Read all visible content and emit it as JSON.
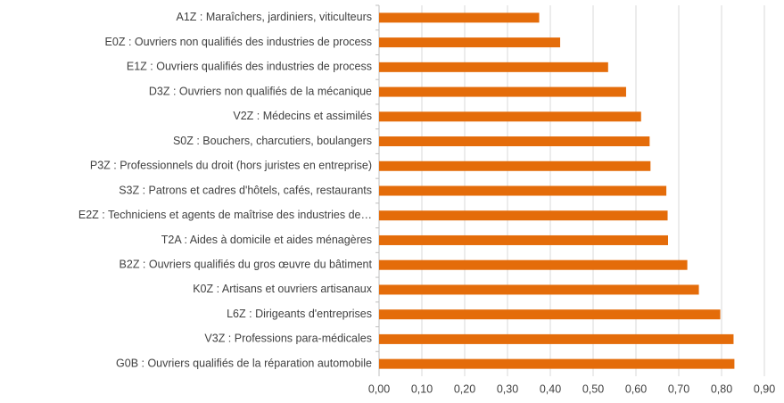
{
  "chart_data": {
    "type": "bar",
    "orientation": "horizontal",
    "categories": [
      "A1Z : Maraîchers, jardiniers, viticulteurs",
      "E0Z : Ouvriers non qualifiés des industries de process",
      "E1Z : Ouvriers qualifiés des industries de process",
      "D3Z : Ouvriers non qualifiés de la mécanique",
      "V2Z : Médecins et assimilés",
      "S0Z : Bouchers, charcutiers, boulangers",
      "P3Z : Professionnels du droit (hors juristes en entreprise)",
      "S3Z : Patrons et cadres d'hôtels, cafés, restaurants",
      "E2Z : Techniciens et agents de maîtrise des industries de…",
      "T2A : Aides à domicile et aides ménagères",
      "B2Z : Ouvriers qualifiés du gros œuvre du bâtiment",
      "K0Z : Artisans et ouvriers artisanaux",
      "L6Z : Dirigeants d'entreprises",
      "V3Z : Professions para-médicales",
      "G0B : Ouvriers qualifiés de la réparation automobile"
    ],
    "values": [
      0.374,
      0.423,
      0.535,
      0.577,
      0.612,
      0.632,
      0.634,
      0.671,
      0.674,
      0.675,
      0.72,
      0.747,
      0.797,
      0.828,
      0.83
    ],
    "color": "#e46c0a",
    "xlim": [
      0,
      0.9
    ],
    "xticks": [
      {
        "value": 0,
        "label": "0,00"
      },
      {
        "value": 0.1,
        "label": "0,10"
      },
      {
        "value": 0.2,
        "label": "0,20"
      },
      {
        "value": 0.3,
        "label": "0,30"
      },
      {
        "value": 0.4,
        "label": "0,40"
      },
      {
        "value": 0.5,
        "label": "0,50"
      },
      {
        "value": 0.6,
        "label": "0,60"
      },
      {
        "value": 0.7,
        "label": "0,70"
      },
      {
        "value": 0.8,
        "label": "0,80"
      },
      {
        "value": 0.9,
        "label": "0,90"
      }
    ],
    "grid": true
  }
}
